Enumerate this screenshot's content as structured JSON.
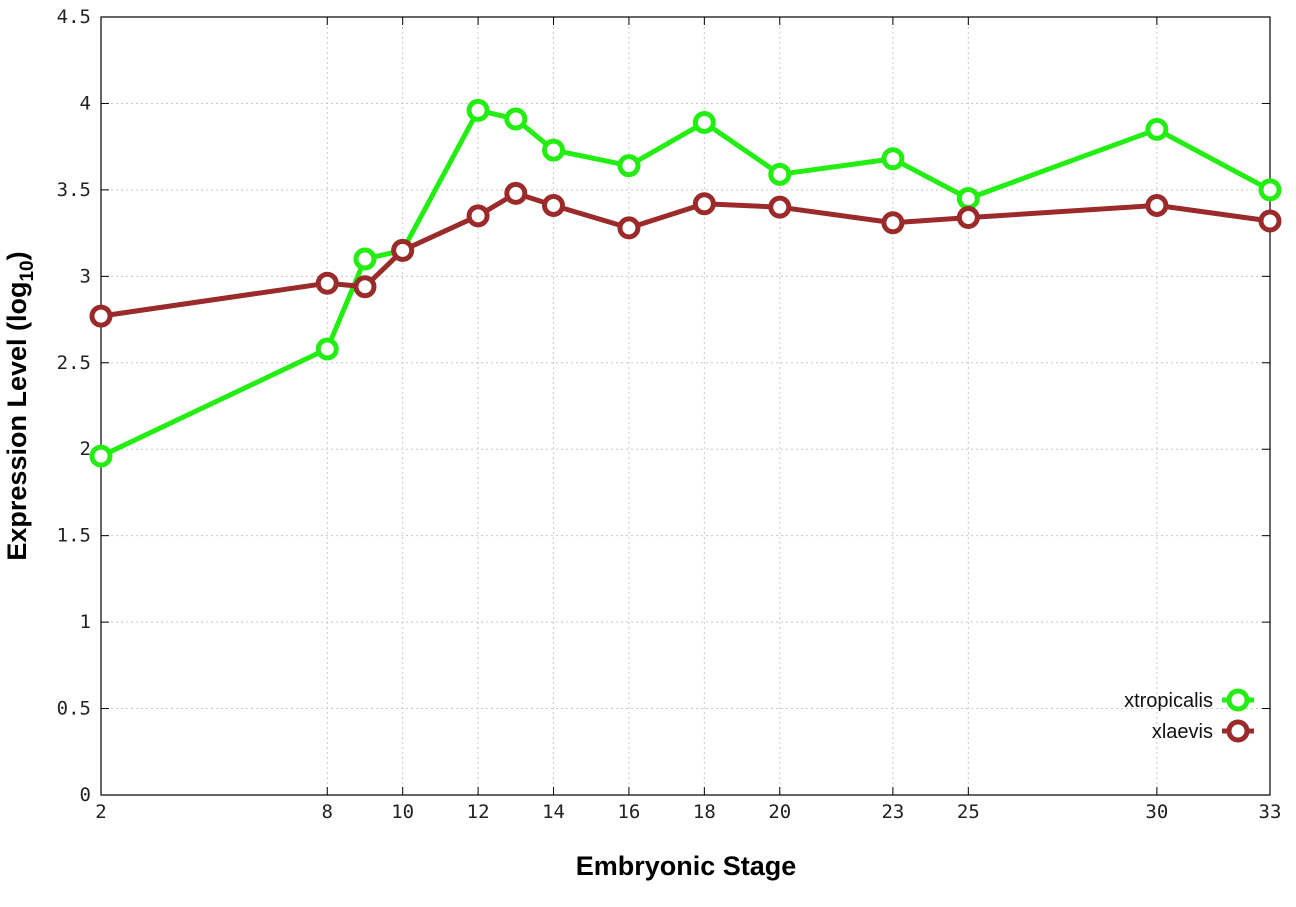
{
  "chart_data": {
    "type": "line",
    "title": "",
    "xlabel": "Embryonic Stage",
    "ylabel_prefix": "Expression Level (log",
    "ylabel_sub": "10",
    "ylabel_suffix": ")",
    "x": [
      2,
      8,
      9,
      10,
      12,
      13,
      14,
      16,
      18,
      20,
      23,
      25,
      30,
      33
    ],
    "x_ticks": [
      "2",
      "8",
      "10",
      "12",
      "14",
      "16",
      "18",
      "20",
      "23",
      "25",
      "30",
      "33"
    ],
    "y_ticks": [
      "0",
      "0.5",
      "1",
      "1.5",
      "2",
      "2.5",
      "3",
      "3.5",
      "4",
      "4.5"
    ],
    "xlim": [
      2,
      33
    ],
    "ylim": [
      0,
      4.5
    ],
    "grid": true,
    "legend_position": "bottom-right",
    "series": [
      {
        "name": "xtropicalis",
        "color": "#22ee11",
        "values": [
          1.96,
          2.58,
          3.1,
          3.15,
          3.96,
          3.91,
          3.73,
          3.64,
          3.89,
          3.59,
          3.68,
          3.45,
          3.85,
          3.5
        ]
      },
      {
        "name": "xlaevis",
        "color": "#9b2a2a",
        "values": [
          2.77,
          2.96,
          2.94,
          3.15,
          3.35,
          3.48,
          3.41,
          3.28,
          3.42,
          3.4,
          3.31,
          3.34,
          3.41,
          3.32
        ]
      }
    ]
  }
}
